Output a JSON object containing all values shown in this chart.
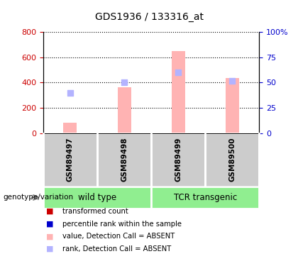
{
  "title": "GDS1936 / 133316_at",
  "samples": [
    "GSM89497",
    "GSM89498",
    "GSM89499",
    "GSM89500"
  ],
  "bar_values_absent": [
    80,
    360,
    650,
    435
  ],
  "rank_values_absent": [
    320,
    400,
    480,
    415
  ],
  "bar_colors_absent": "#ffb3b3",
  "rank_colors_absent": "#b3b3ff",
  "ylim_left": [
    0,
    800
  ],
  "ylim_right": [
    0,
    100
  ],
  "yticks_left": [
    0,
    200,
    400,
    600,
    800
  ],
  "yticks_right": [
    0,
    25,
    50,
    75,
    100
  ],
  "ytick_labels_right": [
    "0",
    "25",
    "50",
    "75",
    "100%"
  ],
  "left_color": "#cc0000",
  "right_color": "#0000cc",
  "plot_bg": "#ffffff",
  "sample_bg": "#cccccc",
  "group_label_wt": "wild type",
  "group_label_tcr": "TCR transgenic",
  "group_bg_color": "#90ee90",
  "legend_items": [
    {
      "color": "#cc0000",
      "label": "transformed count"
    },
    {
      "color": "#0000cc",
      "label": "percentile rank within the sample"
    },
    {
      "color": "#ffb3b3",
      "label": "value, Detection Call = ABSENT"
    },
    {
      "color": "#b3b3ff",
      "label": "rank, Detection Call = ABSENT"
    }
  ],
  "annotation_label": "genotype/variation",
  "bar_width": 0.25
}
